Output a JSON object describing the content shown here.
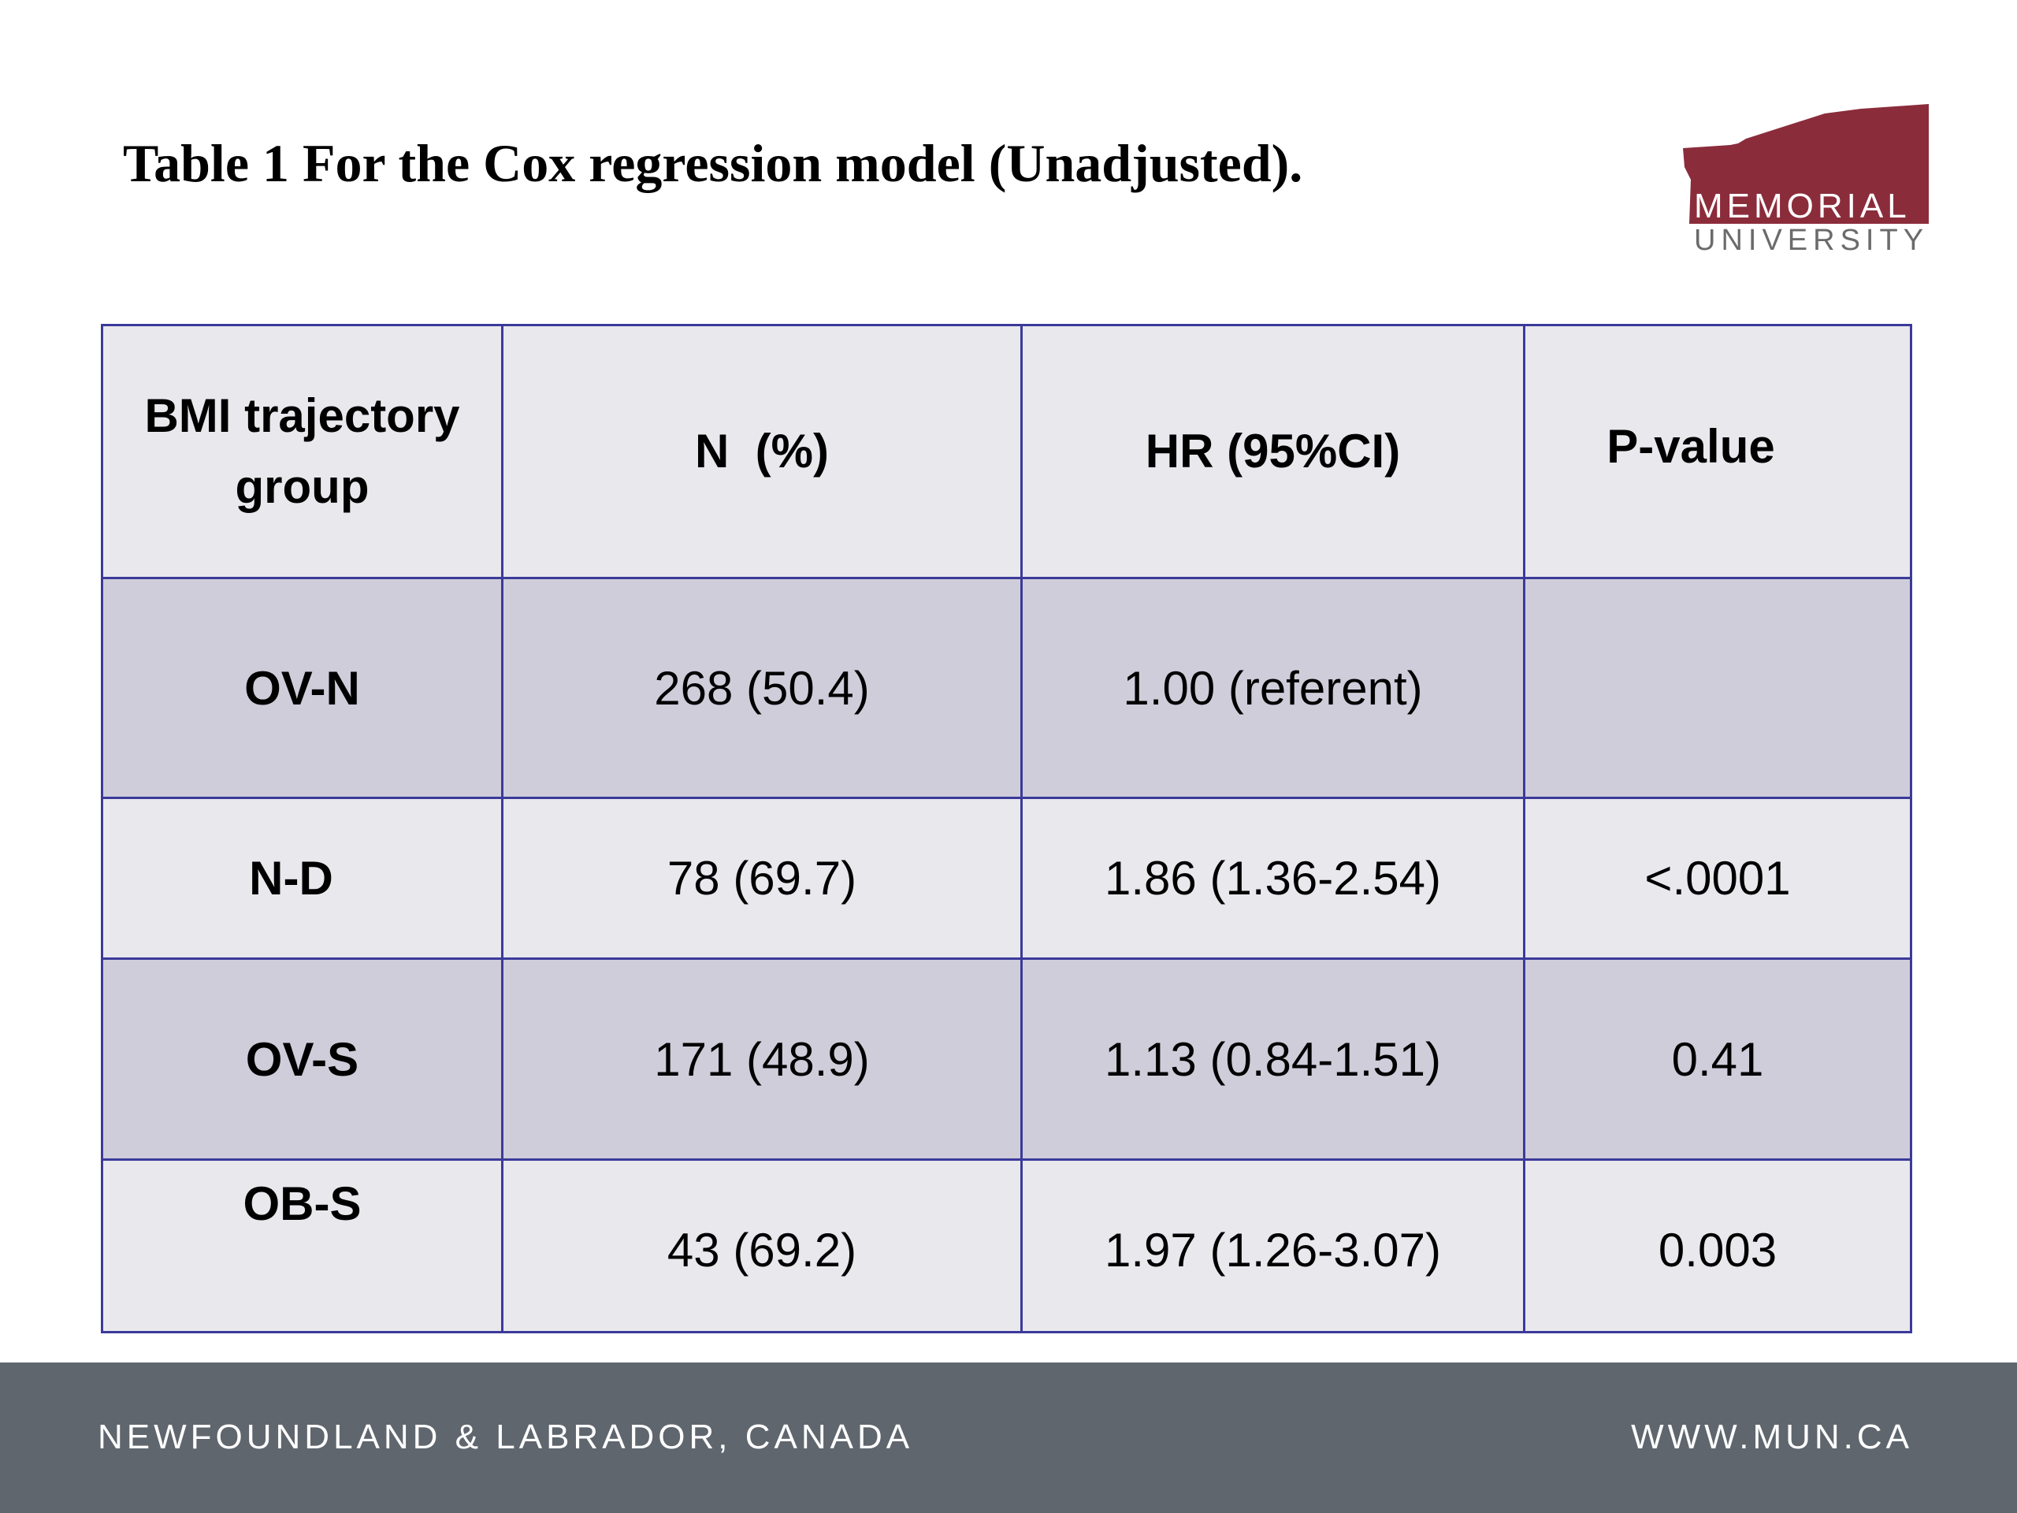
{
  "slide": {
    "title": "Table 1 For the Cox regression model (Unadjusted)."
  },
  "logo": {
    "name": "MEMORIAL",
    "sub": "UNIVERSITY",
    "color": "#8b2c3b"
  },
  "table": {
    "headers": [
      "BMI trajectory group",
      "N  (%)",
      "HR (95%CI)",
      "P-value"
    ],
    "rows": [
      {
        "group": "OV-N",
        "n": "268 (50.4)",
        "hr": "1.00 (referent)",
        "p": ""
      },
      {
        "group": "N-D",
        "n": "78 (69.7)",
        "hr": "1.86 (1.36-2.54)",
        "p": "<.0001"
      },
      {
        "group": "OV-S",
        "n": "171 (48.9)",
        "hr": "1.13 (0.84-1.51)",
        "p": "0.41"
      },
      {
        "group": "OB-S",
        "n": "43 (69.2)",
        "hr": "1.97 (1.26-3.07)",
        "p": "0.003"
      }
    ],
    "colors": {
      "border": "#3b3a9a",
      "row_light": "#e9e8ed",
      "row_shaded": "#cfcdda"
    }
  },
  "footer": {
    "location": "NEWFOUNDLAND & LABRADOR, CANADA",
    "website": "WWW.MUN.CA",
    "background": "#5f666e"
  }
}
